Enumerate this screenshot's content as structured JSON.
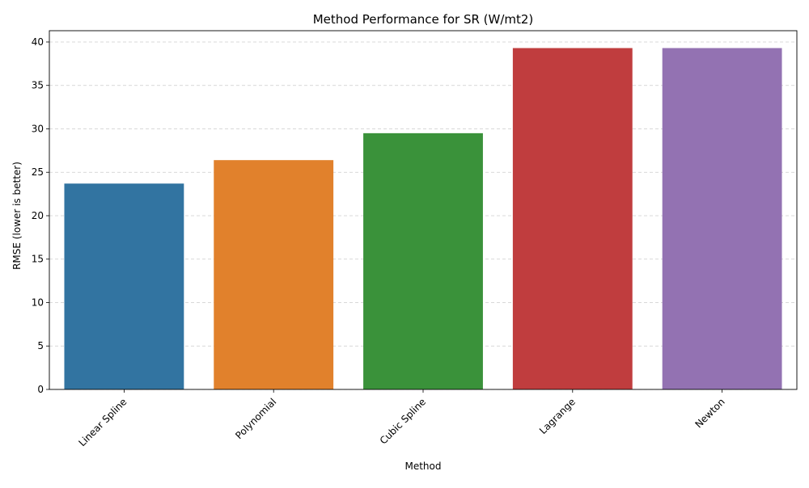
{
  "chart_data": {
    "type": "bar",
    "title": "Method Performance for SR (W/mt2)",
    "xlabel": "Method",
    "ylabel": "RMSE (lower is better)",
    "categories": [
      "Linear Spline",
      "Polynomial",
      "Cubic Spline",
      "Lagrange",
      "Newton"
    ],
    "values": [
      23.7,
      26.4,
      29.5,
      39.3,
      39.3
    ],
    "colors": [
      "#3274a1",
      "#e1812c",
      "#3a923a",
      "#c03d3e",
      "#9372b2"
    ],
    "ylim": [
      0,
      41.3
    ],
    "yticks": [
      0,
      5,
      10,
      15,
      20,
      25,
      30,
      35,
      40
    ],
    "grid": "y-dashed",
    "legend": "none"
  }
}
